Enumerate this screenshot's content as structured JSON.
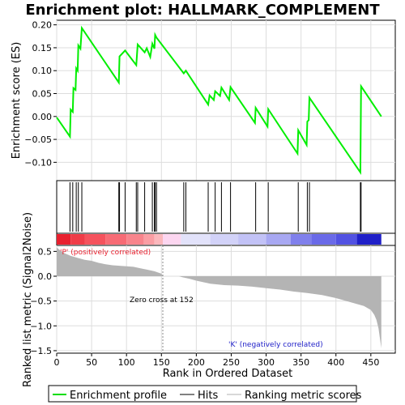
{
  "chart_data": {
    "type": "line",
    "title": "Enrichment plot: HALLMARK_COMPLEMENT",
    "xlabel": "Rank in Ordered Dataset",
    "x_ticks": [
      0,
      50,
      100,
      150,
      200,
      250,
      300,
      350,
      400,
      450
    ],
    "xlim": [
      0,
      485
    ],
    "panels": {
      "es": {
        "ylabel": "Enrichment score (ES)",
        "ylim": [
          -0.14,
          0.21
        ],
        "y_ticks": [
          -0.1,
          -0.05,
          0.0,
          0.05,
          0.1,
          0.15,
          0.2
        ],
        "y_tick_labels": [
          "−0.10",
          "−0.05",
          "0.00",
          "0.05",
          "0.10",
          "0.15",
          "0.20"
        ],
        "series": [
          {
            "name": "Enrichment profile",
            "x": [
              0,
              19,
              20,
              23,
              24,
              27,
              28,
              30,
              31,
              34,
              36,
              89,
              90,
              98,
              114,
              116,
              126,
              129,
              134,
              137,
              140,
              141,
              143,
              182,
              185,
              217,
              219,
              225,
              227,
              234,
              236,
              247,
              249,
              284,
              285,
              302,
              303,
              345,
              346,
              358,
              359,
              361,
              362,
              435,
              436,
              465
            ],
            "y": [
              -0.002,
              -0.044,
              0.015,
              0.01,
              0.062,
              0.058,
              0.105,
              0.1,
              0.155,
              0.148,
              0.193,
              0.074,
              0.131,
              0.144,
              0.112,
              0.157,
              0.14,
              0.149,
              0.13,
              0.159,
              0.148,
              0.178,
              0.172,
              0.094,
              0.1,
              0.026,
              0.046,
              0.036,
              0.055,
              0.045,
              0.063,
              0.036,
              0.064,
              -0.014,
              0.019,
              -0.022,
              0.016,
              -0.081,
              -0.03,
              -0.062,
              -0.011,
              -0.008,
              0.041,
              -0.122,
              0.066,
              0.0
            ]
          }
        ]
      },
      "hits": {
        "name": "Hits",
        "positions": [
          19,
          23,
          28,
          31,
          36,
          89,
          90,
          98,
          114,
          116,
          126,
          137,
          140,
          141,
          143,
          182,
          185,
          217,
          227,
          236,
          249,
          285,
          303,
          346,
          359,
          362,
          435,
          436
        ]
      },
      "heatmap": {
        "segments": [
          {
            "from": 0,
            "to": 20,
            "color": "#e8202e"
          },
          {
            "from": 20,
            "to": 40,
            "color": "#f03c48"
          },
          {
            "from": 40,
            "to": 70,
            "color": "#f5525d"
          },
          {
            "from": 70,
            "to": 100,
            "color": "#f76b75"
          },
          {
            "from": 100,
            "to": 125,
            "color": "#f8848c"
          },
          {
            "from": 125,
            "to": 140,
            "color": "#fa9ea4"
          },
          {
            "from": 140,
            "to": 152,
            "color": "#fbb8bd"
          },
          {
            "from": 152,
            "to": 178,
            "color": "#fcd6f0"
          },
          {
            "from": 178,
            "to": 220,
            "color": "#e2e2fa"
          },
          {
            "from": 220,
            "to": 260,
            "color": "#d2d2f8"
          },
          {
            "from": 260,
            "to": 300,
            "color": "#c2c2f6"
          },
          {
            "from": 300,
            "to": 335,
            "color": "#a8a8f2"
          },
          {
            "from": 335,
            "to": 365,
            "color": "#8080ec"
          },
          {
            "from": 365,
            "to": 400,
            "color": "#6a6ae8"
          },
          {
            "from": 400,
            "to": 430,
            "color": "#5252e2"
          },
          {
            "from": 430,
            "to": 465,
            "color": "#2020c8"
          }
        ]
      },
      "metric": {
        "ylabel": "Ranked list metric (Signal2Noise)",
        "ylim": [
          -1.55,
          0.62
        ],
        "y_ticks": [
          0.5,
          0.0,
          -0.5,
          -1.0,
          -1.5
        ],
        "y_tick_labels": [
          "0.5",
          "0.0",
          "−0.5",
          "−1.0",
          "−1.5"
        ],
        "x": [
          0,
          5,
          10,
          15,
          20,
          30,
          40,
          50,
          60,
          70,
          80,
          90,
          100,
          110,
          120,
          130,
          140,
          150,
          152,
          175,
          180,
          190,
          200,
          210,
          220,
          240,
          260,
          280,
          300,
          320,
          340,
          360,
          380,
          400,
          420,
          440,
          450,
          455,
          458,
          461,
          463,
          465
        ],
        "y": [
          0.58,
          0.52,
          0.47,
          0.44,
          0.41,
          0.37,
          0.33,
          0.31,
          0.27,
          0.24,
          0.22,
          0.21,
          0.2,
          0.19,
          0.16,
          0.13,
          0.1,
          0.05,
          0.0,
          0.0,
          -0.02,
          -0.05,
          -0.09,
          -0.12,
          -0.15,
          -0.18,
          -0.19,
          -0.21,
          -0.24,
          -0.27,
          -0.31,
          -0.34,
          -0.38,
          -0.44,
          -0.52,
          -0.6,
          -0.68,
          -0.78,
          -0.88,
          -1.05,
          -1.25,
          -1.45
        ]
      }
    },
    "annotations": {
      "positive": "'P' (positively correlated)",
      "negative": "'K' (negatively correlated)",
      "zero_cross": "Zero cross at 152"
    },
    "legend": {
      "placement": "bottom",
      "entries": [
        {
          "label": "Enrichment profile",
          "color": "#00dd00"
        },
        {
          "label": "Hits",
          "color": "#000000"
        },
        {
          "label": "Ranking metric scores",
          "color": "#b0b0b0"
        }
      ]
    },
    "colors": {
      "profile": "#00ee00",
      "hits": "#000000",
      "metric": "#b4b4b4",
      "positive_text": "#e8202e",
      "negative_text": "#2020c8"
    }
  }
}
